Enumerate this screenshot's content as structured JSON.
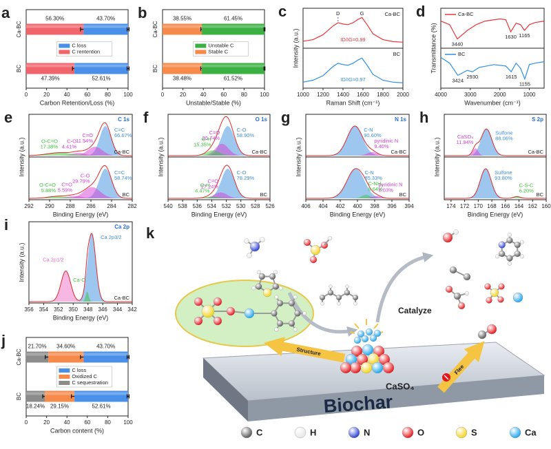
{
  "chart_data": [
    {
      "type": "bar",
      "letter": "a",
      "categories": [
        "Ca-BC",
        "BC"
      ],
      "series": [
        {
          "name": "C rentention",
          "color": "#f0646c",
          "values": [
            56.3,
            47.39
          ],
          "value_labels": [
            "56.30%",
            "47.39%"
          ],
          "errors": [
            3,
            2
          ]
        },
        {
          "name": "C loss",
          "color": "#4a90e8",
          "values": [
            43.7,
            52.61
          ],
          "value_labels": [
            "43.70%",
            "52.61%"
          ],
          "errors": [
            1,
            1
          ]
        }
      ],
      "xlim": [
        0,
        100
      ],
      "xticks": [
        0,
        20,
        40,
        60,
        80,
        100
      ],
      "xlabel": "Carbon Retention/Loss (%)",
      "legend": "center"
    },
    {
      "type": "bar",
      "letter": "b",
      "categories": [
        "Ca-BC",
        "BC"
      ],
      "series": [
        {
          "name": "Stable C",
          "color": "#f58a4a",
          "values": [
            38.55,
            38.48
          ],
          "value_labels": [
            "38.55%",
            "38.48%"
          ],
          "errors": [
            1,
            1
          ]
        },
        {
          "name": "Unstable C",
          "color": "#3cb043",
          "values": [
            61.45,
            61.52
          ],
          "value_labels": [
            "61.45%",
            "61.52%"
          ],
          "errors": [
            0.5,
            0.5
          ]
        }
      ],
      "xlim": [
        0,
        100
      ],
      "xticks": [
        0,
        20,
        40,
        60,
        80,
        100
      ],
      "xlabel": "Unstable/Stable (%)",
      "legend": "center"
    },
    {
      "type": "spectrum",
      "letter": "c",
      "xlim": [
        1000,
        2000
      ],
      "xticks": [
        1000,
        1200,
        1400,
        1600,
        1800,
        2000
      ],
      "xlabel": "Raman Shift (cm⁻¹)",
      "ylabel": "Intensity (a.u.)",
      "legend": "upper right",
      "panels": [
        {
          "sample": "Ca-BC",
          "color": "#e8343a",
          "ylim": [
            0,
            1.1
          ],
          "x": [
            1000,
            1100,
            1200,
            1300,
            1350,
            1400,
            1450,
            1500,
            1550,
            1590,
            1650,
            1700,
            1800,
            1900,
            2000
          ],
          "y": [
            0.15,
            0.2,
            0.35,
            0.62,
            0.72,
            0.68,
            0.66,
            0.72,
            0.82,
            0.88,
            0.62,
            0.38,
            0.2,
            0.14,
            0.12
          ],
          "annotations": [
            {
              "text": "D",
              "x": 1350
            },
            {
              "text": "G",
              "x": 1590
            }
          ],
          "ratio": "ID/IG=0.99"
        },
        {
          "sample": "BC",
          "color": "#2f8fe0",
          "ylim": [
            0,
            1.1
          ],
          "x": [
            1000,
            1100,
            1200,
            1300,
            1350,
            1400,
            1450,
            1500,
            1550,
            1590,
            1650,
            1700,
            1800,
            1900,
            2000
          ],
          "y": [
            0.12,
            0.18,
            0.32,
            0.6,
            0.7,
            0.66,
            0.64,
            0.7,
            0.8,
            0.86,
            0.6,
            0.36,
            0.18,
            0.12,
            0.1
          ],
          "ratio": "ID/IG=0.97"
        }
      ]
    },
    {
      "type": "spectrum",
      "letter": "d",
      "xlim": [
        4000,
        500
      ],
      "xticks": [
        4000,
        3000,
        2000,
        1000
      ],
      "xlabel": "Wavenumber (cm⁻¹)",
      "ylabel": "Transmittance (%)",
      "legend": "upper left",
      "panels": [
        {
          "sample": "Ca-BC",
          "color": "#e8343a",
          "ylim": [
            0.5,
            1
          ],
          "x": [
            4000,
            3700,
            3440,
            3100,
            2800,
            2500,
            2000,
            1800,
            1630,
            1450,
            1300,
            1165,
            1000,
            800,
            500
          ],
          "y": [
            0.85,
            0.8,
            0.6,
            0.72,
            0.8,
            0.85,
            0.88,
            0.87,
            0.7,
            0.82,
            0.8,
            0.72,
            0.8,
            0.83,
            0.85
          ],
          "marks": [
            3440,
            1630,
            1165
          ]
        },
        {
          "sample": "BC",
          "color": "#2f8fe0",
          "ylim": [
            0.4,
            0.9
          ],
          "x": [
            4000,
            3700,
            3424,
            3100,
            2930,
            2700,
            2200,
            1800,
            1615,
            1450,
            1300,
            1155,
            1000,
            800,
            500
          ],
          "y": [
            0.8,
            0.72,
            0.55,
            0.62,
            0.6,
            0.66,
            0.7,
            0.68,
            0.6,
            0.72,
            0.65,
            0.5,
            0.7,
            0.72,
            0.74
          ],
          "marks": [
            3424,
            2930,
            1615,
            1155
          ]
        }
      ]
    },
    {
      "type": "xps",
      "letter": "e",
      "element": "C 1s",
      "xlim": [
        292,
        282
      ],
      "xticks": [
        292,
        290,
        288,
        286,
        284,
        282
      ],
      "xlabel": "Binding Energy (eV)",
      "ylabel": "Intensity (a.u.)",
      "panels": [
        {
          "sample": "Ca-BC",
          "ylim": [
            0,
            1.35
          ],
          "peaks": [
            {
              "name": "C=C",
              "share": "66.67%",
              "center": 284.6,
              "height": 1.0,
              "width": 0.55,
              "color": "#3d8fe0"
            },
            {
              "name": "C=O",
              "share": "11.54%",
              "center": 285.6,
              "height": 0.3,
              "width": 0.7,
              "color": "#d63fd6"
            },
            {
              "name": "C-O",
              "share": "4.41%",
              "center": 287.2,
              "height": 0.1,
              "width": 0.6,
              "color": "#d63fd6"
            },
            {
              "name": "O-C=O",
              "share": "17.38%",
              "center": 289.0,
              "height": 0.1,
              "width": 1.2,
              "color": "#3cc43c"
            }
          ]
        },
        {
          "sample": "BC",
          "ylim": [
            0,
            1.35
          ],
          "peaks": [
            {
              "name": "C=C",
              "share": "58.74%",
              "center": 284.6,
              "height": 1.0,
              "width": 0.6,
              "color": "#3d8fe0"
            },
            {
              "name": "C-O",
              "share": "29.79%",
              "center": 285.9,
              "height": 0.38,
              "width": 0.8,
              "color": "#d63fd6"
            },
            {
              "name": "C=O",
              "share": "5.59%",
              "center": 287.6,
              "height": 0.08,
              "width": 0.7,
              "color": "#d63fd6"
            },
            {
              "name": "O-C=O",
              "share": "5.88%",
              "center": 289.2,
              "height": 0.07,
              "width": 0.9,
              "color": "#3cc43c"
            }
          ]
        }
      ]
    },
    {
      "type": "xps",
      "letter": "f",
      "element": "O 1s",
      "xlim": [
        540,
        526
      ],
      "xticks": [
        540,
        538,
        536,
        534,
        532,
        530,
        528,
        526
      ],
      "xlabel": "Binding Energy (eV)",
      "ylabel": "Intensity (a.u.)",
      "panels": [
        {
          "sample": "Ca-BC",
          "ylim": [
            0,
            1.35
          ],
          "peaks": [
            {
              "name": "C-O",
              "share": "58.90%",
              "center": 531.8,
              "height": 1.0,
              "width": 0.9,
              "color": "#3d8fe0"
            },
            {
              "name": "C=O",
              "share": "25.74%",
              "center": 532.6,
              "height": 0.4,
              "width": 0.9,
              "color": "#d63fd6"
            },
            {
              "name": "O-H",
              "share": "15.35%",
              "center": 533.8,
              "height": 0.18,
              "width": 0.9,
              "color": "#3cc43c"
            }
          ]
        },
        {
          "sample": "BC",
          "ylim": [
            0,
            1.35
          ],
          "peaks": [
            {
              "name": "C-O",
              "share": "78.29%",
              "center": 531.8,
              "height": 1.0,
              "width": 0.9,
              "color": "#3d8fe0"
            },
            {
              "name": "C=O",
              "share": "17.24%",
              "center": 532.8,
              "height": 0.2,
              "width": 0.9,
              "color": "#d63fd6"
            },
            {
              "name": "O-H",
              "share": "4.47%",
              "center": 534.0,
              "height": 0.06,
              "width": 0.9,
              "color": "#3cc43c"
            }
          ]
        }
      ]
    },
    {
      "type": "xps",
      "letter": "g",
      "element": "N 1s",
      "xlim": [
        406,
        394
      ],
      "xticks": [
        406,
        404,
        402,
        400,
        398,
        396,
        394
      ],
      "xlabel": "Binding Energy (eV)",
      "ylabel": "Intensity (a.u.)",
      "panels": [
        {
          "sample": "Ca-BC",
          "ylim": [
            0,
            1.35
          ],
          "peaks": [
            {
              "name": "C-N",
              "share": "90.60%",
              "center": 400.3,
              "height": 1.0,
              "width": 0.9,
              "color": "#3d8fe0"
            },
            {
              "name": "pyridinic N",
              "share": "9.40%",
              "center": 398.3,
              "height": 0.12,
              "width": 0.6,
              "color": "#d63fd6"
            }
          ]
        },
        {
          "sample": "BC",
          "ylim": [
            0,
            1.35
          ],
          "peaks": [
            {
              "name": "C-N",
              "share": "85.33%",
              "center": 400.2,
              "height": 1.0,
              "width": 1.0,
              "color": "#3d8fe0"
            },
            {
              "name": "C-NH₂",
              "share": "8.64%",
              "center": 399.0,
              "height": 0.12,
              "width": 0.5,
              "color": "#3cc43c"
            },
            {
              "name": "pyridinic N",
              "share": "6.03%",
              "center": 397.8,
              "height": 0.08,
              "width": 0.5,
              "color": "#d63fd6"
            }
          ]
        }
      ]
    },
    {
      "type": "xps",
      "letter": "h",
      "element": "S 2p",
      "xlim": [
        175,
        160
      ],
      "xticks": [
        174,
        172,
        170,
        168,
        166,
        164,
        162,
        160
      ],
      "xlabel": "Binding Energy (eV)",
      "ylabel": "Intensity (a.u.)",
      "panels": [
        {
          "sample": "Ca-BC",
          "ylim": [
            0,
            1.35
          ],
          "peaks": [
            {
              "name": "Sulfone",
              "share": "88.06%",
              "center": 168.8,
              "height": 0.9,
              "width": 0.8,
              "color": "#3d8fe0"
            },
            {
              "name": "CaSO₄",
              "share": "11.94%",
              "center": 170.4,
              "height": 0.25,
              "width": 0.4,
              "color": "#d63fd6"
            }
          ]
        },
        {
          "sample": "BC",
          "ylim": [
            0,
            1.35
          ],
          "peaks": [
            {
              "name": "Sulfone",
              "share": "93.80%",
              "center": 168.9,
              "height": 1.0,
              "width": 0.8,
              "color": "#3d8fe0"
            },
            {
              "name": "C-S-C",
              "share": "6.20%",
              "center": 164.3,
              "height": 0.06,
              "width": 0.5,
              "color": "#3cc43c"
            }
          ]
        }
      ]
    },
    {
      "type": "xps",
      "letter": "i",
      "element": "Ca 2p",
      "xlim": [
        356,
        342
      ],
      "xticks": [
        356,
        354,
        352,
        350,
        348,
        346,
        344,
        342
      ],
      "xlabel": "Binding Energy (eV)",
      "ylabel": "Intensity (a.u.)",
      "panels": [
        {
          "sample": "Ca-BC",
          "ylim": [
            0,
            1.15
          ],
          "peaks": [
            {
              "name": "Ca 2p3/2",
              "center": 347.5,
              "height": 1.0,
              "width": 0.55,
              "color": "#3d8fe0"
            },
            {
              "name": "Ca-C",
              "center": 348.1,
              "height": 0.15,
              "width": 0.2,
              "color": "#3cc43c"
            },
            {
              "name": "Ca 2p1/2",
              "center": 351.0,
              "height": 0.45,
              "width": 0.65,
              "color": "#ef6fc8"
            }
          ]
        }
      ]
    },
    {
      "type": "bar",
      "letter": "j",
      "categories": [
        "Ca-BC",
        "BC"
      ],
      "series": [
        {
          "name": "C sequestration",
          "color": "#8c8c8c",
          "values": [
            21.7,
            18.24
          ],
          "value_labels": [
            "21.70%",
            "18.24%"
          ],
          "errors": [
            3,
            2
          ]
        },
        {
          "name": "Oxidized C",
          "color": "#f58a4a",
          "values": [
            34.6,
            29.15
          ],
          "value_labels": [
            "34.60%",
            "29.15%"
          ],
          "errors": [
            3,
            3
          ]
        },
        {
          "name": "C loss",
          "color": "#4a90e8",
          "values": [
            43.7,
            52.61
          ],
          "value_labels": [
            "43.70%",
            "52.61%"
          ],
          "errors": [
            1,
            1
          ]
        }
      ],
      "xlim": [
        0,
        100
      ],
      "xticks": [
        0,
        20,
        40,
        60,
        80,
        100
      ],
      "xlabel": "Carbon content (%)",
      "legend": "center"
    }
  ],
  "schematic": {
    "letter": "k",
    "catalyze": "Catalyze",
    "structure": "Structure",
    "flee": "Flee",
    "center_label": "CaSO₄",
    "base_label": "Biochar",
    "legend": [
      {
        "name": "C",
        "color": "#555555"
      },
      {
        "name": "H",
        "color": "#e6e6e6"
      },
      {
        "name": "N",
        "color": "#2a3fd0"
      },
      {
        "name": "O",
        "color": "#e3151a"
      },
      {
        "name": "S",
        "color": "#f2d21c"
      },
      {
        "name": "Ca",
        "color": "#1ea4ec"
      }
    ]
  }
}
